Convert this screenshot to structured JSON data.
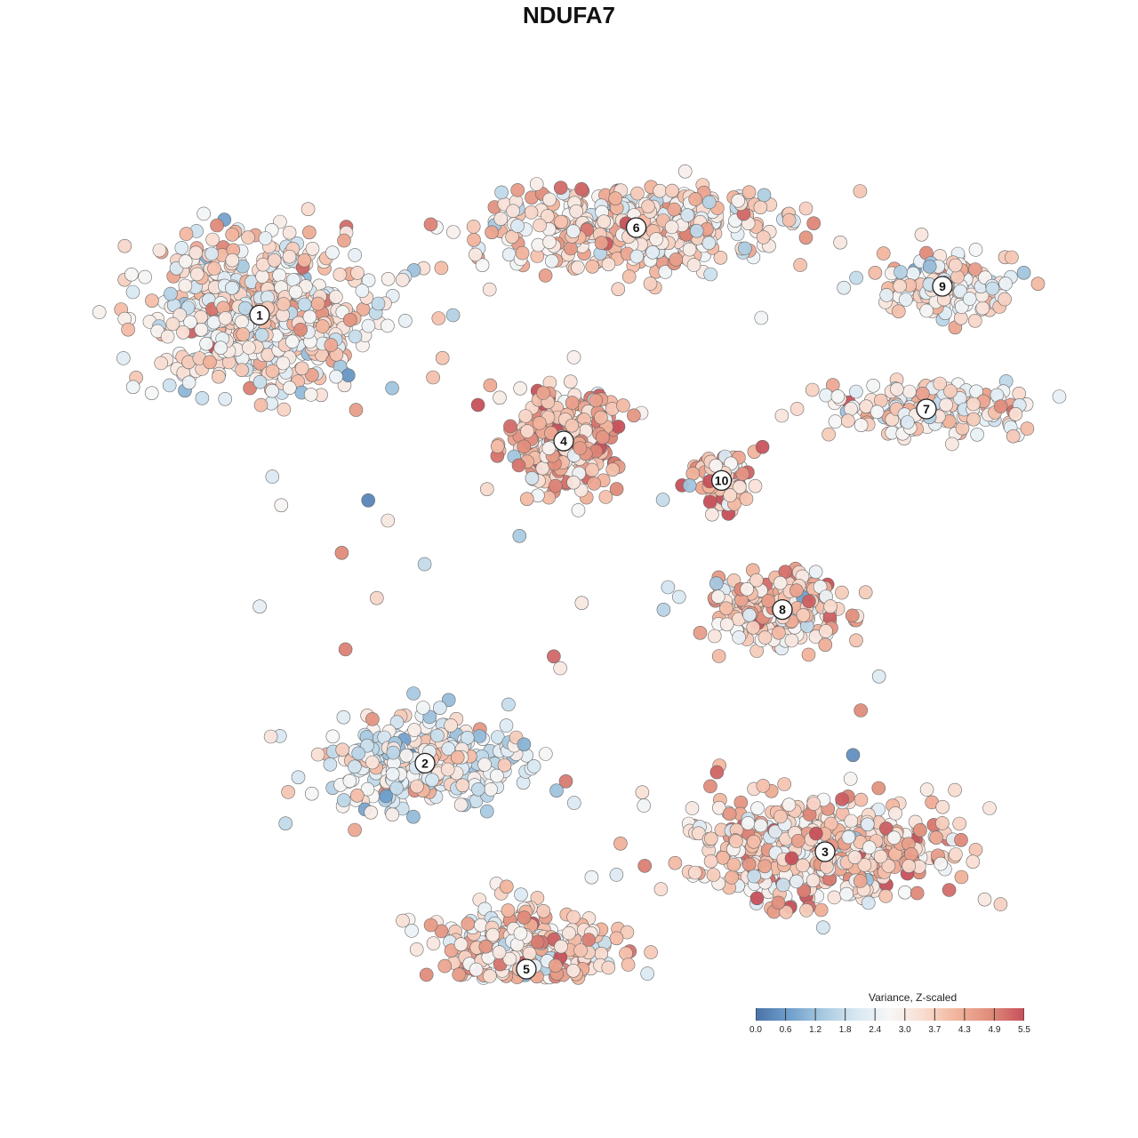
{
  "chart_data": {
    "type": "scatter",
    "title": "NDUFA7",
    "xlabel": "",
    "ylabel": "",
    "colorbar": {
      "title": "Variance, Z-scaled",
      "min": 0.0,
      "max": 5.5,
      "ticks": [
        "0.0",
        "0.6",
        "1.2",
        "1.8",
        "2.4",
        "3.0",
        "3.7",
        "4.3",
        "4.9",
        "5.5"
      ],
      "colors": [
        "#4a72a8",
        "#6f9fcc",
        "#a7c9e0",
        "#d8e8f2",
        "#f7f7f7",
        "#f9dcd0",
        "#f2b49c",
        "#e08b7a",
        "#c6505a"
      ]
    },
    "clusters": [
      {
        "label": "1",
        "x": -2.9,
        "y": 2.38,
        "sx": 0.95,
        "sy": 0.62,
        "n": 620,
        "mean": 3.0
      },
      {
        "label": "2",
        "x": -1.35,
        "y": -1.82,
        "sx": 0.85,
        "sy": 0.38,
        "n": 330,
        "mean": 2.6
      },
      {
        "label": "3",
        "x": 2.4,
        "y": -2.65,
        "sx": 1.15,
        "sy": 0.45,
        "n": 520,
        "mean": 3.6
      },
      {
        "label": "4",
        "x": -0.05,
        "y": 1.2,
        "sx": 0.48,
        "sy": 0.42,
        "n": 270,
        "mean": 4.1
      },
      {
        "label": "5",
        "x": -0.4,
        "y": -3.75,
        "sx": 0.75,
        "sy": 0.55,
        "n": 450,
        "mean": 3.5
      },
      {
        "label": "6",
        "x": 0.63,
        "y": 3.2,
        "sx": 1.3,
        "sy": 0.38,
        "n": 420,
        "mean": 3.4
      },
      {
        "label": "7",
        "x": 3.35,
        "y": 1.5,
        "sx": 0.75,
        "sy": 0.22,
        "n": 190,
        "mean": 3.2
      },
      {
        "label": "8",
        "x": 2.0,
        "y": -0.38,
        "sx": 0.6,
        "sy": 0.3,
        "n": 210,
        "mean": 3.6
      },
      {
        "label": "9",
        "x": 3.5,
        "y": 2.65,
        "sx": 0.55,
        "sy": 0.26,
        "n": 140,
        "mean": 3.1
      },
      {
        "label": "10",
        "x": 1.43,
        "y": 0.83,
        "sx": 0.24,
        "sy": 0.25,
        "n": 70,
        "mean": 3.9
      }
    ],
    "xlim": [
      -6.0,
      6.0
    ],
    "ylim": [
      -6.0,
      6.0
    ],
    "grid": false,
    "legend_position": "bottom-right"
  }
}
